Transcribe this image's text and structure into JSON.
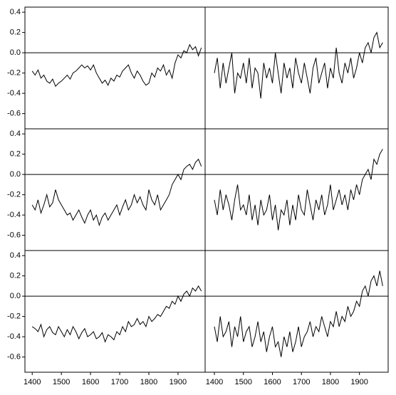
{
  "chart_data": [
    {
      "type": "line",
      "color": "#000000",
      "hline": 0,
      "xlim": [
        1375,
        1993
      ],
      "ylim": [
        -0.75,
        0.45
      ],
      "yticks": [
        -0.6,
        -0.4,
        -0.2,
        {
          "value": 0,
          "label": "0.0"
        },
        0.2,
        0.4
      ],
      "x": [
        1400,
        1410,
        1420,
        1430,
        1440,
        1450,
        1460,
        1470,
        1480,
        1490,
        1500,
        1510,
        1520,
        1530,
        1540,
        1550,
        1560,
        1570,
        1580,
        1590,
        1600,
        1610,
        1620,
        1630,
        1640,
        1650,
        1660,
        1670,
        1680,
        1690,
        1700,
        1710,
        1720,
        1730,
        1740,
        1750,
        1760,
        1770,
        1780,
        1790,
        1800,
        1810,
        1820,
        1830,
        1840,
        1850,
        1860,
        1870,
        1880,
        1890,
        1900,
        1910,
        1920,
        1930,
        1940,
        1950,
        1960,
        1970,
        1980
      ],
      "values": [
        -0.18,
        -0.22,
        -0.17,
        -0.25,
        -0.22,
        -0.28,
        -0.3,
        -0.26,
        -0.33,
        -0.3,
        -0.28,
        -0.25,
        -0.22,
        -0.26,
        -0.2,
        -0.18,
        -0.15,
        -0.12,
        -0.15,
        -0.13,
        -0.17,
        -0.12,
        -0.2,
        -0.25,
        -0.3,
        -0.27,
        -0.32,
        -0.25,
        -0.28,
        -0.22,
        -0.24,
        -0.18,
        -0.15,
        -0.12,
        -0.2,
        -0.25,
        -0.18,
        -0.22,
        -0.28,
        -0.32,
        -0.3,
        -0.2,
        -0.24,
        -0.15,
        -0.18,
        -0.12,
        -0.22,
        -0.17,
        -0.25,
        -0.1,
        -0.02,
        -0.05,
        0.02,
        0.0,
        0.08,
        0.03,
        0.06,
        -0.03,
        0.05
      ]
    },
    {
      "type": "line",
      "color": "#000000",
      "hline": 0,
      "xlim": [
        1368,
        1999
      ],
      "ylim": [
        -0.75,
        0.45
      ],
      "x": [
        1400,
        1410,
        1420,
        1430,
        1440,
        1450,
        1460,
        1470,
        1480,
        1490,
        1500,
        1510,
        1520,
        1530,
        1540,
        1550,
        1560,
        1570,
        1580,
        1590,
        1600,
        1610,
        1620,
        1630,
        1640,
        1650,
        1660,
        1670,
        1680,
        1690,
        1700,
        1710,
        1720,
        1730,
        1740,
        1750,
        1760,
        1770,
        1780,
        1790,
        1800,
        1810,
        1820,
        1830,
        1840,
        1850,
        1860,
        1870,
        1880,
        1890,
        1900,
        1910,
        1920,
        1930,
        1940,
        1950,
        1960,
        1970,
        1980
      ],
      "values": [
        -0.2,
        -0.05,
        -0.35,
        -0.1,
        -0.3,
        -0.15,
        0.0,
        -0.4,
        -0.2,
        -0.25,
        -0.1,
        -0.3,
        -0.05,
        -0.35,
        -0.15,
        -0.2,
        -0.45,
        -0.1,
        -0.25,
        -0.15,
        -0.3,
        0.0,
        -0.2,
        -0.4,
        -0.1,
        -0.25,
        -0.15,
        -0.35,
        -0.05,
        -0.2,
        -0.3,
        -0.1,
        -0.25,
        -0.4,
        -0.15,
        -0.05,
        -0.3,
        -0.2,
        -0.1,
        -0.35,
        -0.15,
        -0.25,
        0.05,
        -0.2,
        -0.3,
        -0.1,
        -0.2,
        -0.05,
        -0.25,
        -0.15,
        0.0,
        -0.1,
        0.05,
        0.1,
        0.0,
        0.15,
        0.2,
        0.05,
        0.1
      ]
    },
    {
      "type": "line",
      "color": "#000000",
      "hline": 0,
      "xlim": [
        1375,
        1993
      ],
      "ylim": [
        -0.75,
        0.45
      ],
      "yticks": [
        -0.6,
        -0.4,
        -0.2,
        {
          "value": 0,
          "label": "0.0"
        },
        0.2,
        0.4
      ],
      "x": [
        1400,
        1410,
        1420,
        1430,
        1440,
        1450,
        1460,
        1470,
        1480,
        1490,
        1500,
        1510,
        1520,
        1530,
        1540,
        1550,
        1560,
        1570,
        1580,
        1590,
        1600,
        1610,
        1620,
        1630,
        1640,
        1650,
        1660,
        1670,
        1680,
        1690,
        1700,
        1710,
        1720,
        1730,
        1740,
        1750,
        1760,
        1770,
        1780,
        1790,
        1800,
        1810,
        1820,
        1830,
        1840,
        1850,
        1860,
        1870,
        1880,
        1890,
        1900,
        1910,
        1920,
        1930,
        1940,
        1950,
        1960,
        1970,
        1980
      ],
      "values": [
        -0.3,
        -0.35,
        -0.25,
        -0.38,
        -0.3,
        -0.2,
        -0.32,
        -0.28,
        -0.15,
        -0.25,
        -0.3,
        -0.35,
        -0.4,
        -0.38,
        -0.45,
        -0.4,
        -0.35,
        -0.42,
        -0.48,
        -0.4,
        -0.35,
        -0.45,
        -0.4,
        -0.5,
        -0.42,
        -0.38,
        -0.45,
        -0.4,
        -0.35,
        -0.3,
        -0.4,
        -0.32,
        -0.25,
        -0.35,
        -0.3,
        -0.2,
        -0.28,
        -0.22,
        -0.3,
        -0.35,
        -0.15,
        -0.25,
        -0.3,
        -0.2,
        -0.35,
        -0.3,
        -0.25,
        -0.2,
        -0.1,
        -0.05,
        0.0,
        -0.05,
        0.05,
        0.08,
        0.1,
        0.05,
        0.12,
        0.15,
        0.08
      ]
    },
    {
      "type": "line",
      "color": "#000000",
      "hline": 0,
      "xlim": [
        1368,
        1999
      ],
      "ylim": [
        -0.75,
        0.45
      ],
      "x": [
        1400,
        1410,
        1420,
        1430,
        1440,
        1450,
        1460,
        1470,
        1480,
        1490,
        1500,
        1510,
        1520,
        1530,
        1540,
        1550,
        1560,
        1570,
        1580,
        1590,
        1600,
        1610,
        1620,
        1630,
        1640,
        1650,
        1660,
        1670,
        1680,
        1690,
        1700,
        1710,
        1720,
        1730,
        1740,
        1750,
        1760,
        1770,
        1780,
        1790,
        1800,
        1810,
        1820,
        1830,
        1840,
        1850,
        1860,
        1870,
        1880,
        1890,
        1900,
        1910,
        1920,
        1930,
        1940,
        1950,
        1960,
        1970,
        1980
      ],
      "values": [
        -0.25,
        -0.4,
        -0.15,
        -0.35,
        -0.2,
        -0.3,
        -0.45,
        -0.25,
        -0.1,
        -0.35,
        -0.3,
        -0.4,
        -0.2,
        -0.45,
        -0.3,
        -0.5,
        -0.25,
        -0.4,
        -0.35,
        -0.2,
        -0.45,
        -0.3,
        -0.55,
        -0.35,
        -0.4,
        -0.25,
        -0.5,
        -0.3,
        -0.45,
        -0.2,
        -0.35,
        -0.4,
        -0.15,
        -0.3,
        -0.45,
        -0.25,
        -0.35,
        -0.2,
        -0.4,
        -0.3,
        -0.1,
        -0.35,
        -0.25,
        -0.15,
        -0.3,
        -0.2,
        -0.35,
        -0.15,
        -0.25,
        -0.1,
        -0.2,
        -0.05,
        0.0,
        0.05,
        -0.05,
        0.15,
        0.1,
        0.2,
        0.25
      ]
    },
    {
      "type": "line",
      "color": "#000000",
      "hline": 0,
      "xlim": [
        1375,
        1993
      ],
      "ylim": [
        -0.75,
        0.45
      ],
      "yticks": [
        -0.6,
        -0.4,
        -0.2,
        {
          "value": 0,
          "label": "0.0"
        },
        0.2,
        0.4
      ],
      "xticks": [
        1400,
        1500,
        1600,
        1700,
        1800,
        1900
      ],
      "x": [
        1400,
        1410,
        1420,
        1430,
        1440,
        1450,
        1460,
        1470,
        1480,
        1490,
        1500,
        1510,
        1520,
        1530,
        1540,
        1550,
        1560,
        1570,
        1580,
        1590,
        1600,
        1610,
        1620,
        1630,
        1640,
        1650,
        1660,
        1670,
        1680,
        1690,
        1700,
        1710,
        1720,
        1730,
        1740,
        1750,
        1760,
        1770,
        1780,
        1790,
        1800,
        1810,
        1820,
        1830,
        1840,
        1850,
        1860,
        1870,
        1880,
        1890,
        1900,
        1910,
        1920,
        1930,
        1940,
        1950,
        1960,
        1970,
        1980
      ],
      "values": [
        -0.3,
        -0.32,
        -0.35,
        -0.28,
        -0.4,
        -0.33,
        -0.3,
        -0.36,
        -0.38,
        -0.3,
        -0.35,
        -0.4,
        -0.33,
        -0.38,
        -0.3,
        -0.35,
        -0.42,
        -0.36,
        -0.32,
        -0.4,
        -0.38,
        -0.35,
        -0.42,
        -0.4,
        -0.36,
        -0.45,
        -0.38,
        -0.4,
        -0.43,
        -0.35,
        -0.38,
        -0.3,
        -0.35,
        -0.25,
        -0.3,
        -0.28,
        -0.22,
        -0.28,
        -0.25,
        -0.3,
        -0.2,
        -0.25,
        -0.22,
        -0.18,
        -0.2,
        -0.15,
        -0.1,
        -0.12,
        -0.05,
        -0.08,
        0.0,
        -0.05,
        0.02,
        0.05,
        0.0,
        0.08,
        0.05,
        0.1,
        0.05
      ]
    },
    {
      "type": "line",
      "color": "#000000",
      "hline": 0,
      "xlim": [
        1368,
        1999
      ],
      "ylim": [
        -0.75,
        0.45
      ],
      "xticks": [
        1400,
        1500,
        1600,
        1700,
        1800,
        1900
      ],
      "x": [
        1400,
        1410,
        1420,
        1430,
        1440,
        1450,
        1460,
        1470,
        1480,
        1490,
        1500,
        1510,
        1520,
        1530,
        1540,
        1550,
        1560,
        1570,
        1580,
        1590,
        1600,
        1610,
        1620,
        1630,
        1640,
        1650,
        1660,
        1670,
        1680,
        1690,
        1700,
        1710,
        1720,
        1730,
        1740,
        1750,
        1760,
        1770,
        1780,
        1790,
        1800,
        1810,
        1820,
        1830,
        1840,
        1850,
        1860,
        1870,
        1880,
        1890,
        1900,
        1910,
        1920,
        1930,
        1940,
        1950,
        1960,
        1970,
        1980
      ],
      "values": [
        -0.3,
        -0.45,
        -0.2,
        -0.4,
        -0.35,
        -0.25,
        -0.5,
        -0.3,
        -0.4,
        -0.2,
        -0.45,
        -0.35,
        -0.3,
        -0.5,
        -0.4,
        -0.25,
        -0.45,
        -0.35,
        -0.55,
        -0.4,
        -0.3,
        -0.5,
        -0.45,
        -0.6,
        -0.4,
        -0.5,
        -0.35,
        -0.55,
        -0.45,
        -0.3,
        -0.5,
        -0.4,
        -0.35,
        -0.25,
        -0.4,
        -0.3,
        -0.35,
        -0.2,
        -0.3,
        -0.4,
        -0.25,
        -0.3,
        -0.15,
        -0.3,
        -0.2,
        -0.25,
        -0.1,
        -0.2,
        -0.15,
        -0.05,
        -0.1,
        0.05,
        0.1,
        0.0,
        0.15,
        0.2,
        0.1,
        0.25,
        0.1
      ]
    }
  ]
}
